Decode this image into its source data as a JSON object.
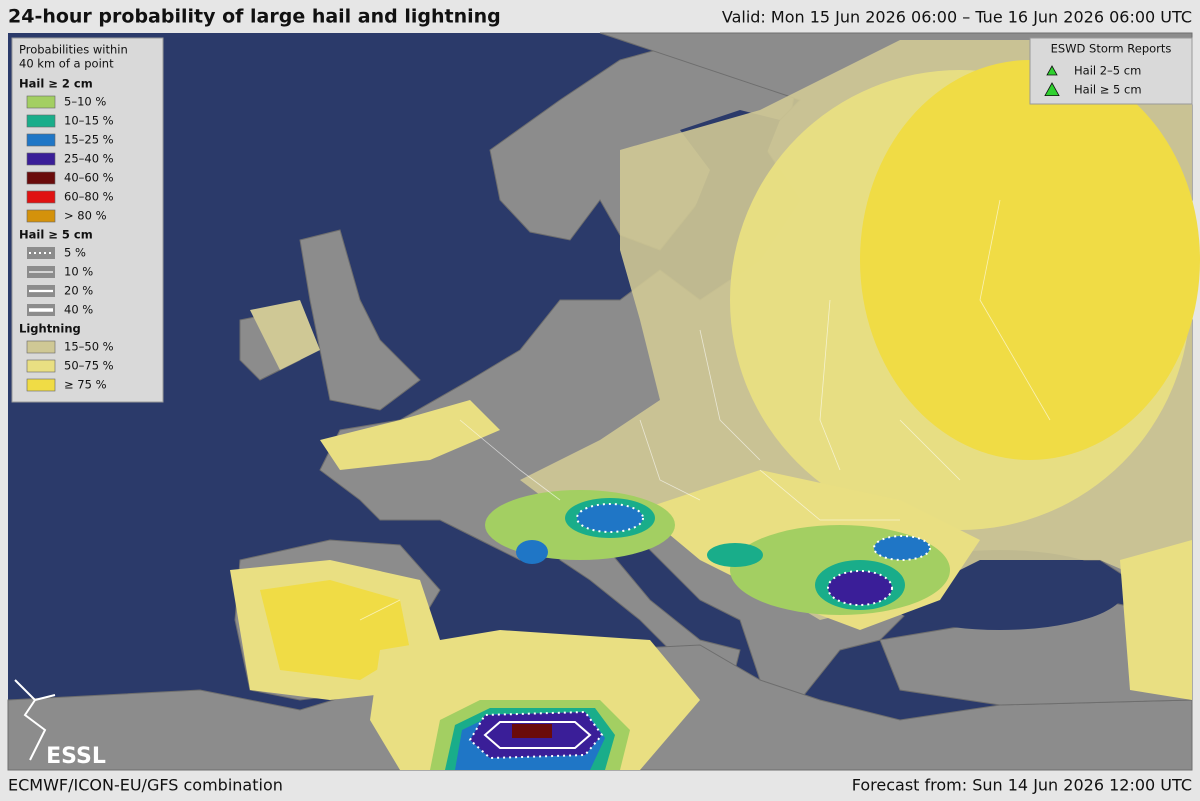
{
  "header": {
    "title": "24-hour probability of large hail and lightning",
    "valid": "Valid: Mon 15 Jun 2026 06:00 – Tue 16 Jun 2026 06:00 UTC"
  },
  "legend": {
    "heading": [
      "Probabilities within",
      "40 km of a point"
    ],
    "hail2": {
      "title": "Hail ≥ 2 cm",
      "items": [
        {
          "label": "5–10 %",
          "color": "#a3cf62"
        },
        {
          "label": "10–15 %",
          "color": "#19ad8a"
        },
        {
          "label": "15–25 %",
          "color": "#1f76c6"
        },
        {
          "label": "25–40 %",
          "color": "#3a1e98"
        },
        {
          "label": "40–60 %",
          "color": "#6a0b0b"
        },
        {
          "label": "60–80 %",
          "color": "#e01212"
        },
        {
          "label": "> 80 %",
          "color": "#d4920b"
        }
      ]
    },
    "hail5": {
      "title": "Hail ≥ 5 cm",
      "items": [
        {
          "label": "5 %",
          "dotted": true,
          "width": 2
        },
        {
          "label": "10 %",
          "dotted": false,
          "width": 1.2
        },
        {
          "label": "20 %",
          "dotted": false,
          "width": 2.2
        },
        {
          "label": "40 %",
          "dotted": false,
          "width": 3.4
        }
      ]
    },
    "lightning": {
      "title": "Lightning",
      "items": [
        {
          "label": "15–50 %",
          "color": "#cfc895"
        },
        {
          "label": "50–75 %",
          "color": "#e9df82"
        },
        {
          "label": "≥ 75 %",
          "color": "#f0dc45"
        }
      ]
    }
  },
  "reports": {
    "title": "ESWD Storm Reports",
    "items": [
      {
        "label": "Hail 2–5 cm",
        "size": 5
      },
      {
        "label": "Hail ≥ 5 cm",
        "size": 7
      }
    ]
  },
  "logo": "ESSL",
  "footer": {
    "model": "ECMWF/ICON-EU/GFS combination",
    "forecast": "Forecast from: Sun 14 Jun 2026 12:00 UTC"
  }
}
